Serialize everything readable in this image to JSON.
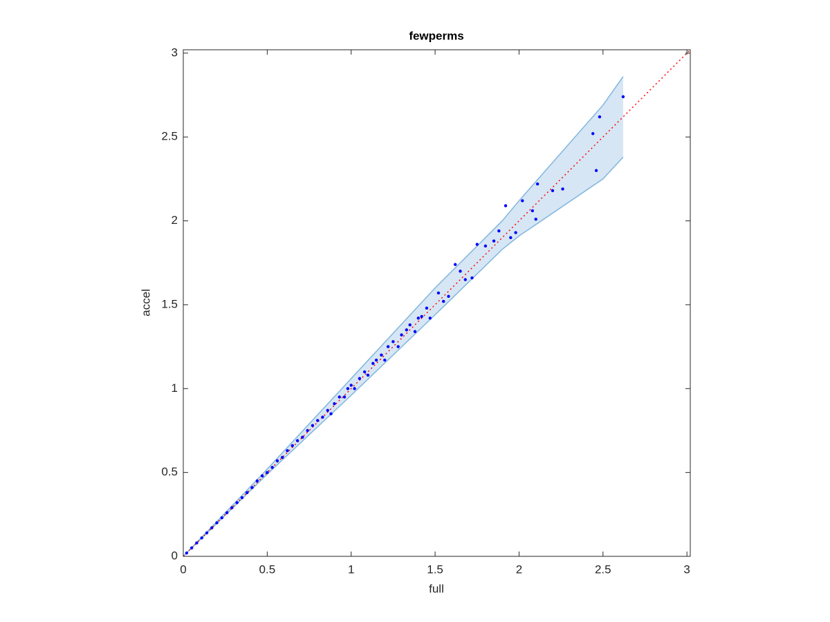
{
  "chart_data": {
    "type": "scatter",
    "title": "fewperms",
    "x_label": "full",
    "y_label": "accel",
    "color": "#0000ff",
    "x": [
      0.02,
      0.05,
      0.08,
      0.11,
      0.14,
      0.17,
      0.2,
      0.23,
      0.26,
      0.29,
      0.32,
      0.35,
      0.38,
      0.41,
      0.44,
      0.47,
      0.5,
      0.53,
      0.56,
      0.59,
      0.62,
      0.65,
      0.68,
      0.71,
      0.74,
      0.77,
      0.8,
      0.83,
      0.86,
      0.88,
      0.9,
      0.93,
      0.96,
      0.98,
      1.0,
      1.02,
      1.05,
      1.08,
      1.1,
      1.13,
      1.15,
      1.18,
      1.2,
      1.22,
      1.25,
      1.28,
      1.3,
      1.33,
      1.35,
      1.38,
      1.4,
      1.42,
      1.45,
      1.47,
      1.52,
      1.55,
      1.58,
      1.62,
      1.65,
      1.68,
      1.72,
      1.75,
      1.8,
      1.85,
      1.88,
      1.92,
      1.95,
      1.98,
      2.02,
      2.08,
      2.1,
      2.11,
      2.2,
      2.26,
      2.44,
      2.46,
      2.48,
      2.62
    ],
    "y": [
      0.02,
      0.05,
      0.08,
      0.11,
      0.14,
      0.17,
      0.2,
      0.23,
      0.26,
      0.29,
      0.32,
      0.35,
      0.38,
      0.41,
      0.45,
      0.48,
      0.5,
      0.53,
      0.57,
      0.59,
      0.63,
      0.66,
      0.69,
      0.71,
      0.75,
      0.78,
      0.81,
      0.83,
      0.87,
      0.85,
      0.91,
      0.95,
      0.95,
      1.0,
      1.02,
      1.0,
      1.06,
      1.1,
      1.08,
      1.15,
      1.17,
      1.2,
      1.17,
      1.25,
      1.28,
      1.25,
      1.32,
      1.35,
      1.38,
      1.34,
      1.42,
      1.43,
      1.48,
      1.42,
      1.57,
      1.52,
      1.55,
      1.74,
      1.7,
      1.65,
      1.66,
      1.86,
      1.85,
      1.88,
      1.94,
      2.09,
      1.9,
      1.93,
      2.12,
      2.06,
      2.01,
      2.22,
      2.18,
      2.19,
      2.52,
      2.3,
      2.62,
      2.74
    ],
    "band": {
      "x": [
        0,
        0.5,
        1,
        1.5,
        1.9,
        2,
        2.5,
        2.62
      ],
      "upper": [
        0,
        0.52,
        1.06,
        1.6,
        2.0,
        2.12,
        2.69,
        2.86
      ],
      "lower": [
        0,
        0.49,
        0.96,
        1.44,
        1.83,
        1.91,
        2.25,
        2.38
      ],
      "fill": "#d6e6f4",
      "edge": "#80b6dd"
    },
    "reference_line": {
      "color": "#ff0000",
      "style": "dotted"
    },
    "xlim": [
      0,
      3.02
    ],
    "ylim": [
      0,
      3.02
    ],
    "xticks": [
      0,
      0.5,
      1,
      1.5,
      2,
      2.5,
      3
    ],
    "yticks": [
      0,
      0.5,
      1,
      1.5,
      2,
      2.5,
      3
    ]
  }
}
